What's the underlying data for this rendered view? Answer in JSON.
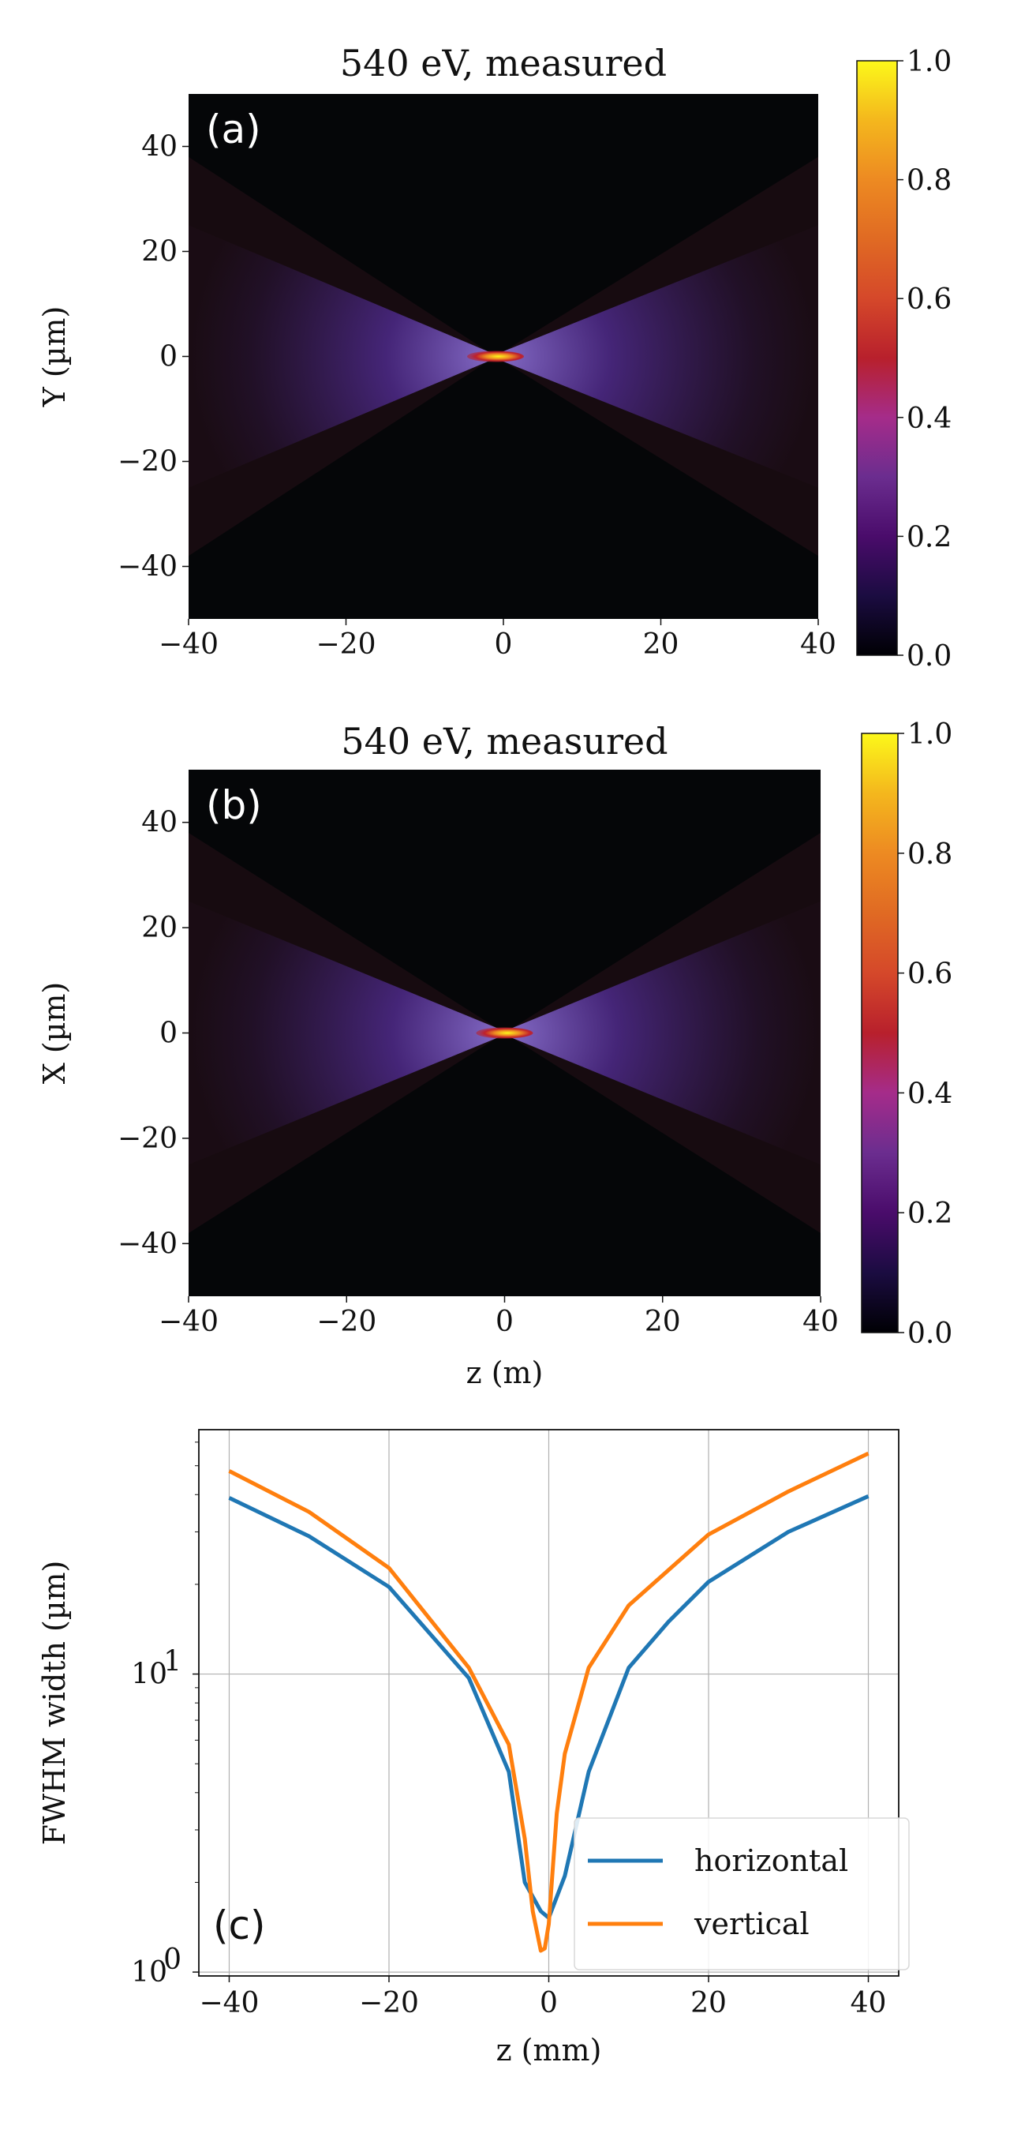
{
  "chart_data": [
    {
      "type": "heatmap",
      "panel_label": "(a)",
      "title": "540 eV, measured",
      "xlabel": "",
      "ylabel": "Y (µm)",
      "xlim": [
        -40,
        40
      ],
      "ylim": [
        -50,
        50
      ],
      "xticks": [
        "−40",
        "−20",
        "0",
        "20",
        "40"
      ],
      "yticks": [
        "40",
        "20",
        "0",
        "−20",
        "−40"
      ],
      "xtick_values": [
        -40,
        -20,
        0,
        20,
        40
      ],
      "ytick_values": [
        40,
        20,
        0,
        -20,
        -40
      ],
      "focus_z": -1,
      "colorbar": {
        "range": [
          0,
          1
        ],
        "ticks": [
          "0.0",
          "0.2",
          "0.4",
          "0.6",
          "0.8",
          "1.0"
        ],
        "tick_values": [
          0,
          0.2,
          0.4,
          0.6,
          0.8,
          1.0
        ],
        "colormap": "inferno"
      }
    },
    {
      "type": "heatmap",
      "panel_label": "(b)",
      "title": "540 eV, measured",
      "xlabel": "z (m)",
      "ylabel": "X (µm)",
      "xlim": [
        -40,
        40
      ],
      "ylim": [
        -50,
        50
      ],
      "xticks": [
        "−40",
        "−20",
        "0",
        "20",
        "40"
      ],
      "yticks": [
        "40",
        "20",
        "0",
        "−20",
        "−40"
      ],
      "xtick_values": [
        -40,
        -20,
        0,
        20,
        40
      ],
      "ytick_values": [
        40,
        20,
        0,
        -20,
        -40
      ],
      "focus_z": 0,
      "colorbar": {
        "range": [
          0,
          1
        ],
        "ticks": [
          "0.0",
          "0.2",
          "0.4",
          "0.6",
          "0.8",
          "1.0"
        ],
        "tick_values": [
          0,
          0.2,
          0.4,
          0.6,
          0.8,
          1.0
        ],
        "colormap": "inferno"
      }
    },
    {
      "type": "line",
      "panel_label": "(c)",
      "xlabel": "z (mm)",
      "ylabel": "FWHM width (µm)",
      "yscale": "log",
      "xlim": [
        -43.8,
        43.8
      ],
      "ylim_log10": [
        -0.013,
        1.82
      ],
      "xticks": [
        "−40",
        "−20",
        "0",
        "20",
        "40"
      ],
      "xtick_values": [
        -40,
        -20,
        0,
        20,
        40
      ],
      "yticks": [
        {
          "base": "10",
          "exp": "0",
          "value": 1
        },
        {
          "base": "10",
          "exp": "1",
          "value": 10
        }
      ],
      "grid": true,
      "legend_position": "lower-right",
      "series": [
        {
          "name": "horizontal",
          "color": "#1f77b4",
          "x": [
            -40,
            -30,
            -20,
            -10,
            -5,
            -3,
            -1,
            0,
            2,
            5,
            10,
            15,
            20,
            30,
            40
          ],
          "y": [
            39,
            29,
            19.6,
            9.7,
            4.7,
            2.0,
            1.6,
            1.52,
            2.1,
            4.7,
            10.5,
            15,
            20.4,
            30,
            39.5
          ]
        },
        {
          "name": "vertical",
          "color": "#ff7f0e",
          "x": [
            -40,
            -30,
            -20,
            -10,
            -5,
            -3,
            -2,
            -1,
            -0.5,
            0,
            1,
            2,
            5,
            10,
            20,
            30,
            40
          ],
          "y": [
            48,
            35,
            22.7,
            10.5,
            5.8,
            2.8,
            1.6,
            1.18,
            1.2,
            1.45,
            3.4,
            5.4,
            10.5,
            17,
            29.4,
            41,
            55
          ]
        }
      ]
    }
  ]
}
